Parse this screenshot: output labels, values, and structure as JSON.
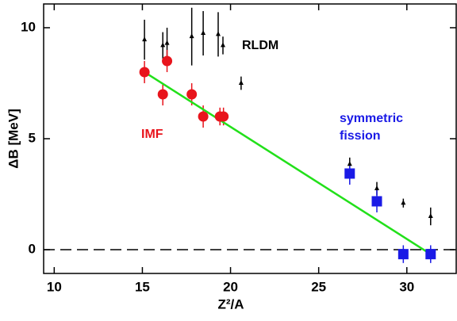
{
  "chart_data": {
    "type": "scatter",
    "x_label": "Z²/A",
    "y_label": "ΔB [MeV]",
    "xlim": [
      9.4,
      32.8
    ],
    "ylim": [
      -1.07,
      11.07
    ],
    "xticks": [
      10,
      15,
      20,
      25,
      30
    ],
    "yticks": [
      0,
      5,
      10
    ],
    "hline": 0,
    "series": [
      {
        "name": "RLDM",
        "color": "#000000",
        "marker": "triangle",
        "x": [
          15.12,
          16.16,
          16.4,
          17.8,
          18.45,
          19.3,
          19.57,
          20.6,
          26.76,
          28.3,
          29.8,
          31.35
        ],
        "values": [
          9.46,
          9.2,
          9.3,
          9.6,
          9.75,
          9.7,
          9.2,
          7.5,
          3.85,
          2.75,
          2.1,
          1.5
        ],
        "errors": [
          0.9,
          0.6,
          0.7,
          1.3,
          1.0,
          1.0,
          0.4,
          0.3,
          0.3,
          0.3,
          0.2,
          0.4
        ]
      },
      {
        "name": "IMF",
        "color": "#e8141c",
        "marker": "circle",
        "x": [
          15.12,
          16.16,
          16.4,
          17.8,
          18.45,
          19.4,
          19.6
        ],
        "values": [
          8.0,
          7.0,
          8.5,
          7.0,
          6.0,
          6.0,
          6.0
        ],
        "errors": [
          0.5,
          0.5,
          0.5,
          0.5,
          0.5,
          0.4,
          0.4
        ]
      },
      {
        "name": "symmetric fission",
        "color": "#1a1ae6",
        "marker": "square",
        "x": [
          26.76,
          28.3,
          29.8,
          31.35
        ],
        "values": [
          3.43,
          2.18,
          -0.2,
          -0.2
        ],
        "errors": [
          0.5,
          0.5,
          0.4,
          0.4
        ]
      }
    ],
    "fit_line": {
      "color": "#22e01a",
      "x": [
        15.12,
        31.35
      ],
      "values": [
        8.0,
        -0.2
      ]
    }
  }
}
